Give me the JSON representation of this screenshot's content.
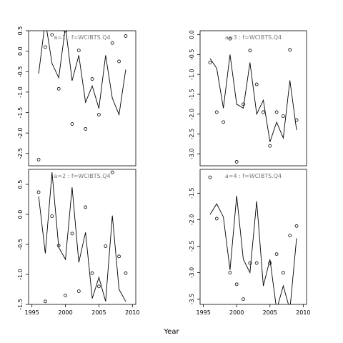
{
  "xlabel": "Year",
  "chart_data": [
    {
      "type": "line",
      "title": "a=1  :  f=WCIBTS.Q4",
      "xlim": [
        1994.5,
        2010.5
      ],
      "ylim": [
        -2.8,
        0.5
      ],
      "yticks": [
        0.5,
        0.0,
        -0.5,
        -1.0,
        -1.5,
        -2.0,
        -2.5
      ],
      "xticks": [],
      "x": [
        1996,
        1997,
        1998,
        1999,
        2000,
        2001,
        2002,
        2003,
        2004,
        2005,
        2006,
        2007,
        2008,
        2009
      ],
      "line": [
        -0.55,
        0.75,
        -0.3,
        -0.65,
        0.6,
        -0.72,
        -0.1,
        -1.25,
        -0.85,
        -1.4,
        -0.1,
        -1.15,
        -1.55,
        -0.45
      ],
      "points": [
        -2.65,
        0.1,
        0.4,
        -0.92,
        0.5,
        -1.78,
        0.02,
        -1.9,
        -0.68,
        -1.55,
        0.55,
        0.2,
        -0.25,
        0.37
      ]
    },
    {
      "type": "line",
      "title": "a=3  :  f=WCIBTS.Q4",
      "xlim": [
        1994.5,
        2010.5
      ],
      "ylim": [
        -3.3,
        0.1
      ],
      "yticks": [
        0.0,
        -0.5,
        -1.0,
        -1.5,
        -2.0,
        -2.5,
        -3.0
      ],
      "xticks": [],
      "x": [
        1996,
        1997,
        1998,
        1999,
        2000,
        2001,
        2002,
        2003,
        2004,
        2005,
        2006,
        2007,
        2008,
        2009
      ],
      "line": [
        -0.6,
        -0.85,
        -1.85,
        -0.5,
        -1.75,
        -1.85,
        -0.7,
        -2.0,
        -1.65,
        -2.7,
        -2.2,
        -2.6,
        -1.15,
        -2.4
      ],
      "points": [
        -0.7,
        -1.95,
        -2.2,
        -0.1,
        -3.2,
        -1.75,
        -0.4,
        -1.25,
        -1.95,
        -2.8,
        -1.95,
        -2.05,
        -0.38,
        -2.15
      ]
    },
    {
      "type": "line",
      "title": "a=2  :  f=WCIBTS.Q4",
      "xlim": [
        1994.5,
        2010.5
      ],
      "ylim": [
        -1.5,
        0.75
      ],
      "yticks": [
        0.5,
        0.0,
        -0.5,
        -1.0,
        -1.5
      ],
      "xticks": [
        1995,
        2000,
        2005,
        2010
      ],
      "x": [
        1996,
        1997,
        1998,
        1999,
        2000,
        2001,
        2002,
        2003,
        2004,
        2005,
        2006,
        2007,
        2008,
        2009
      ],
      "line": [
        0.3,
        -0.65,
        0.7,
        -0.55,
        -0.75,
        0.45,
        -0.8,
        -0.3,
        -1.4,
        -1.05,
        -1.45,
        -0.02,
        -1.25,
        -1.45
      ],
      "points": [
        0.37,
        -1.45,
        -0.03,
        -0.52,
        -1.35,
        -0.32,
        -1.28,
        0.12,
        -0.98,
        -1.2,
        -0.53,
        0.7,
        -0.7,
        -0.98
      ]
    },
    {
      "type": "line",
      "title": "a=4  :  f=WCIBTS.Q4",
      "xlim": [
        1994.5,
        2010.5
      ],
      "ylim": [
        -3.6,
        -1.05
      ],
      "yticks": [
        -1.5,
        -2.0,
        -2.5,
        -3.0,
        -3.5
      ],
      "xticks": [
        1995,
        2000,
        2005,
        2010
      ],
      "x": [
        1996,
        1997,
        1998,
        1999,
        2000,
        2001,
        2002,
        2003,
        2004,
        2005,
        2006,
        2007,
        2008,
        2009
      ],
      "line": [
        -1.9,
        -1.7,
        -1.95,
        -2.95,
        -1.55,
        -2.75,
        -3.0,
        -1.65,
        -3.25,
        -2.75,
        -3.7,
        -3.25,
        -3.7,
        -2.35
      ],
      "points": [
        -1.2,
        -1.98,
        null,
        -3.0,
        -3.22,
        -3.5,
        -2.82,
        -2.82,
        null,
        -2.82,
        -2.65,
        -3.0,
        -2.3,
        -2.12
      ]
    }
  ]
}
